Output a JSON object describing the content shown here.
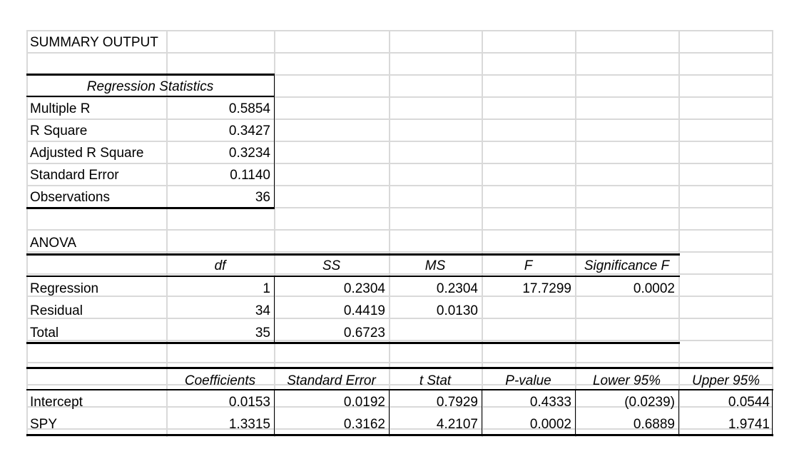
{
  "summary": {
    "title": "SUMMARY OUTPUT"
  },
  "regression_statistics": {
    "header": "Regression Statistics",
    "rows": [
      {
        "label": "Multiple R",
        "value": "0.5854"
      },
      {
        "label": "R Square",
        "value": "0.3427"
      },
      {
        "label": "Adjusted R Square",
        "value": "0.3234"
      },
      {
        "label": "Standard Error",
        "value": "0.1140"
      },
      {
        "label": "Observations",
        "value": "36"
      }
    ]
  },
  "anova": {
    "title": "ANOVA",
    "headers": [
      "df",
      "SS",
      "MS",
      "F",
      "Significance F"
    ],
    "rows": [
      {
        "label": "Regression",
        "df": "1",
        "ss": "0.2304",
        "ms": "0.2304",
        "f": "17.7299",
        "sig": "0.0002"
      },
      {
        "label": "Residual",
        "df": "34",
        "ss": "0.4419",
        "ms": "0.0130",
        "f": "",
        "sig": ""
      },
      {
        "label": "Total",
        "df": "35",
        "ss": "0.6723",
        "ms": "",
        "f": "",
        "sig": ""
      }
    ]
  },
  "coefficients": {
    "headers": [
      "Coefficients",
      "Standard Error",
      "t Stat",
      "P-value",
      "Lower 95%",
      "Upper 95%"
    ],
    "rows": [
      {
        "label": "Intercept",
        "values": [
          "0.0153",
          "0.0192",
          "0.7929",
          "0.4333",
          "(0.0239)",
          "0.0544"
        ]
      },
      {
        "label": "SPY",
        "values": [
          "1.3315",
          "0.3162",
          "4.2107",
          "0.0002",
          "0.6889",
          "1.9741"
        ]
      }
    ]
  }
}
